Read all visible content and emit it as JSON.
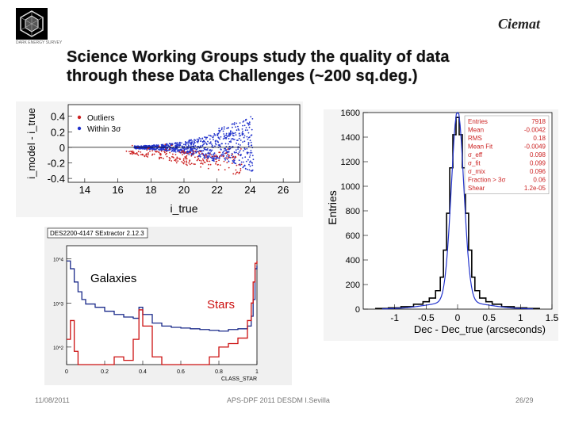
{
  "slide": {
    "title_line1": "Science Working Groups study the quality of data",
    "title_line2": "through these Data Challenges (~200 sq.deg.)",
    "logo_right": "Ciemat",
    "logo_left_sub": "DARK ENERGY SURVEY",
    "footer": {
      "date": "11/08/2011",
      "center": "APS-DPF 2011 DESDM I.Sevilla",
      "page": "26/29"
    }
  },
  "chart_data": [
    {
      "type": "scatter",
      "title": "",
      "xlabel": "i_true",
      "ylabel": "i_model - i_true",
      "xlim": [
        13,
        27
      ],
      "ylim": [
        -0.45,
        0.55
      ],
      "xticks": [
        "14",
        "16",
        "18",
        "20",
        "22",
        "24",
        "26"
      ],
      "yticks": [
        "0.4",
        "0.2",
        "0",
        "-0.2",
        "-0.4"
      ],
      "legend": [
        "Outliers",
        "Within 3σ"
      ],
      "legend_colors": [
        "#cc2222",
        "#2233cc"
      ],
      "zero_line": 0
    },
    {
      "type": "line",
      "title": "DES2200-4147 SExtractor 2.12.3",
      "xlabel": "CLASS_STAR",
      "ylabel": "",
      "yscale": "log",
      "xlim": [
        0,
        1
      ],
      "xticks": [
        "0",
        "0.2",
        "0.4",
        "0.6",
        "0.8",
        "1"
      ],
      "ytick_labels": [
        "10^4",
        "10^3",
        "10^2"
      ],
      "annotations": [
        "Galaxies",
        "Stars"
      ],
      "series": [
        {
          "name": "Galaxies",
          "color": "#1a2a8a",
          "x": [
            0.0,
            0.02,
            0.04,
            0.06,
            0.08,
            0.1,
            0.15,
            0.2,
            0.25,
            0.3,
            0.35,
            0.38,
            0.4,
            0.45,
            0.5,
            0.55,
            0.6,
            0.65,
            0.7,
            0.75,
            0.8,
            0.85,
            0.9,
            0.95,
            0.97,
            0.98,
            0.99,
            1.0
          ],
          "values": [
            9000,
            6000,
            3000,
            1800,
            1200,
            950,
            800,
            650,
            550,
            480,
            450,
            800,
            550,
            350,
            300,
            280,
            270,
            260,
            250,
            240,
            230,
            250,
            260,
            300,
            500,
            1200,
            6000,
            7000
          ]
        },
        {
          "name": "Stars",
          "color": "#cc1111",
          "x": [
            0.0,
            0.02,
            0.04,
            0.06,
            0.08,
            0.1,
            0.15,
            0.2,
            0.25,
            0.3,
            0.35,
            0.38,
            0.4,
            0.45,
            0.5,
            0.55,
            0.6,
            0.65,
            0.7,
            0.75,
            0.8,
            0.85,
            0.9,
            0.95,
            0.97,
            0.98,
            0.99,
            1.0
          ],
          "values": [
            150,
            400,
            80,
            30,
            20,
            30,
            20,
            40,
            60,
            50,
            150,
            700,
            300,
            60,
            40,
            30,
            25,
            30,
            40,
            60,
            100,
            120,
            160,
            400,
            1000,
            3000,
            8000,
            9000
          ]
        }
      ]
    },
    {
      "type": "bar",
      "title": "",
      "xlabel": "Dec - Dec_true (arcseconds)",
      "ylabel": "Entries",
      "xlim": [
        -1.5,
        1.5
      ],
      "ylim": [
        0,
        1600
      ],
      "xticks": [
        "-1",
        "-0.5",
        "0",
        "0.5",
        "1",
        "1.5"
      ],
      "yticks": [
        "0",
        "200",
        "400",
        "600",
        "800",
        "1000",
        "1200",
        "1400",
        "1600"
      ],
      "stats": [
        {
          "label": "Entries",
          "value": "7918"
        },
        {
          "label": "Mean",
          "value": "-0.0042"
        },
        {
          "label": "RMS",
          "value": "0.18"
        },
        {
          "label": "Mean Fit",
          "value": "-0.0049"
        },
        {
          "label": "σ_eff",
          "value": "0.098"
        },
        {
          "label": "σ_fit",
          "value": "0.099"
        },
        {
          "label": "σ_mix",
          "value": "0.096"
        },
        {
          "label": "Fraction > 3σ",
          "value": "0.06"
        },
        {
          "label": "Shear",
          "value": "1.2e-05"
        }
      ],
      "bin_centers": [
        -1.2,
        -1.0,
        -0.8,
        -0.6,
        -0.5,
        -0.4,
        -0.3,
        -0.25,
        -0.2,
        -0.15,
        -0.1,
        -0.05,
        0.0,
        0.05,
        0.1,
        0.15,
        0.2,
        0.25,
        0.3,
        0.4,
        0.5,
        0.6,
        0.8,
        1.0,
        1.2
      ],
      "values": [
        5,
        10,
        20,
        40,
        60,
        90,
        150,
        260,
        480,
        780,
        1150,
        1420,
        1560,
        1420,
        1150,
        780,
        480,
        260,
        150,
        90,
        60,
        40,
        20,
        10,
        5
      ],
      "fit_color": "#2233cc"
    }
  ]
}
